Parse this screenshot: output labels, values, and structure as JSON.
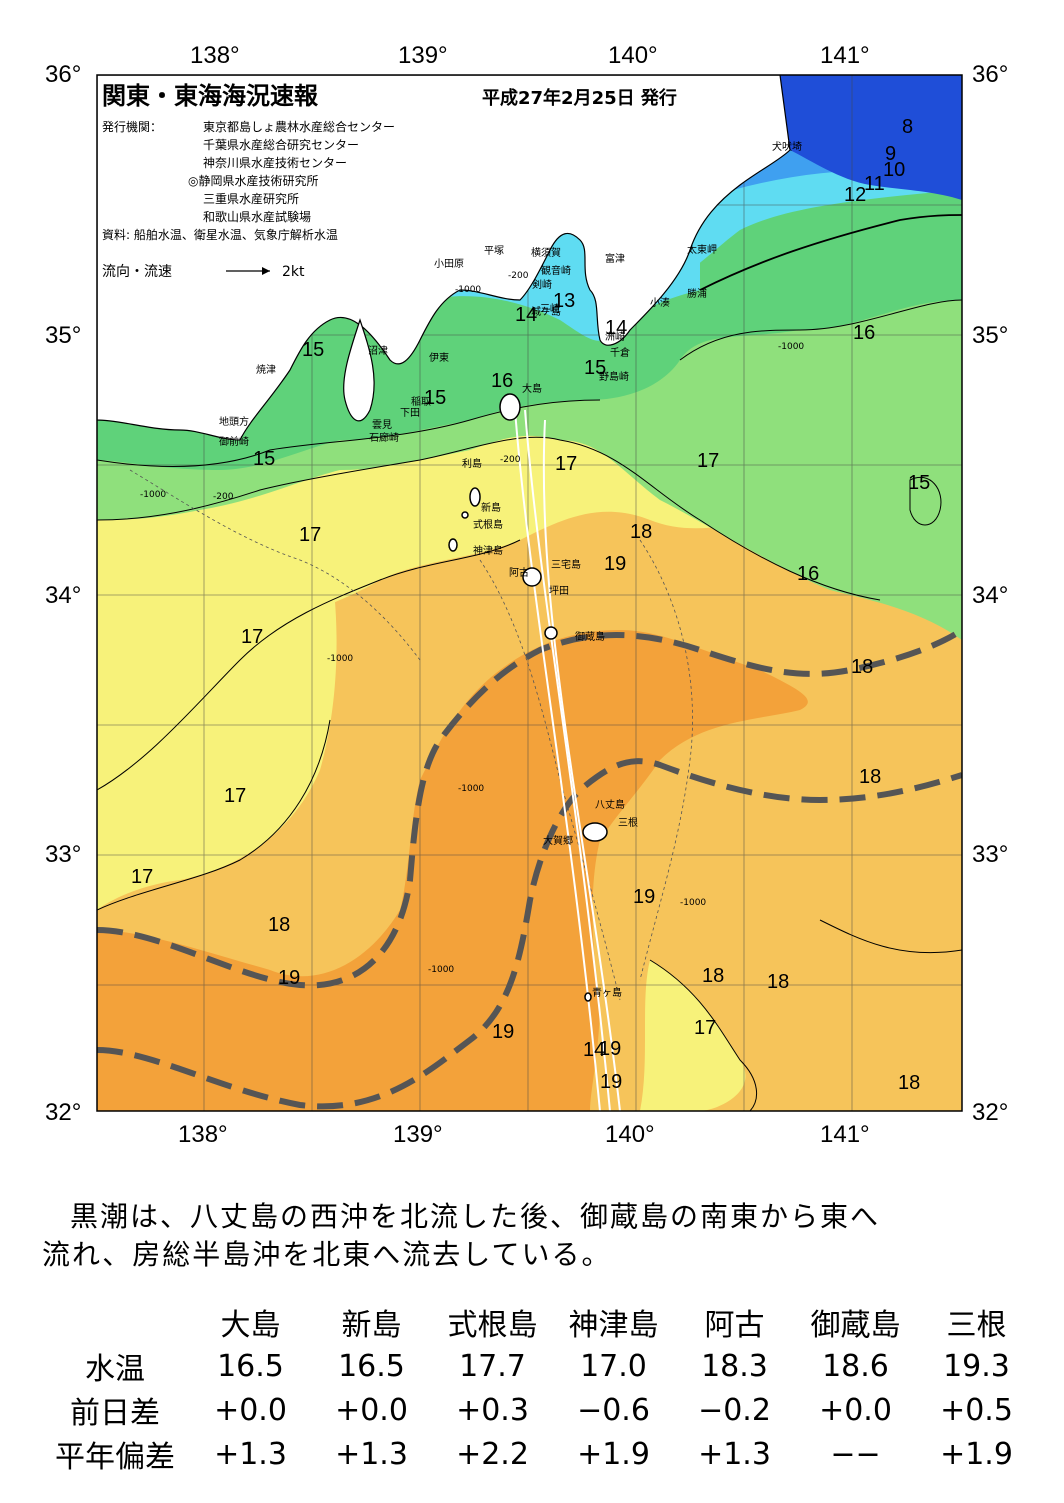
{
  "header": {
    "title": "関東・東海海況速報",
    "issue_date": "平成27年2月25日 発行",
    "publisher_label": "発行機関：",
    "publishers": [
      "東京都島しょ農林水産総合センター",
      "千葉県水産総合研究センター",
      "神奈川県水産技術センター",
      "◎静岡県水産技術研究所",
      "三重県水産研究所",
      "和歌山県水産試験場"
    ],
    "sources": "資料: 船舶水温、衛星水温、気象庁解析水温",
    "legend_label": "流向・流速",
    "legend_scale": "2kt"
  },
  "map": {
    "lon_labels": [
      "138°",
      "139°",
      "140°",
      "141°"
    ],
    "lat_labels": [
      "36°",
      "35°",
      "34°",
      "33°",
      "32°"
    ],
    "place_names": [
      "犬吠埼",
      "太東岬",
      "勝浦",
      "小湊",
      "富津",
      "観音崎",
      "剣崎",
      "城ケ島",
      "横須賀",
      "平塚",
      "小田原",
      "三崎",
      "洲崎",
      "千倉",
      "野島崎",
      "大島",
      "稲取",
      "下田",
      "沼津",
      "伊東",
      "雲見",
      "石廊崎",
      "焼津",
      "地頭方",
      "御前崎",
      "利島",
      "新島",
      "式根島",
      "神津島",
      "三宅島",
      "阿古",
      "坪田",
      "御蔵島",
      "八丈島",
      "三根",
      "大賀郷",
      "青ヶ島"
    ],
    "isotherm_labels": [
      "8",
      "9",
      "10",
      "11",
      "12",
      "13",
      "14",
      "14",
      "14",
      "15",
      "15",
      "15",
      "15",
      "15",
      "16",
      "16",
      "16",
      "17",
      "17",
      "17",
      "17",
      "17",
      "17",
      "17",
      "18",
      "18",
      "18",
      "18",
      "18",
      "18",
      "18",
      "19",
      "19",
      "19",
      "19",
      "19",
      "19"
    ],
    "depth_labels": [
      "-200",
      "-1000"
    ],
    "colors": {
      "sea_8_10": "#1f4ed8",
      "sea_11_12": "#3fa0f0",
      "sea_13_14": "#5fdcf2",
      "sea_15": "#5fd27a",
      "sea_16": "#8fe07c",
      "sea_17": "#f7f27a",
      "sea_18": "#f6c45a",
      "sea_19": "#f3a23a",
      "kuroshio_axis": "#555555",
      "land": "#ffffff"
    }
  },
  "summary": [
    "黒潮は、八丈島の西沖を北流した後、御蔵島の南東から東へ",
    "流れ、房総半島沖を北東へ流去している。"
  ],
  "stations": {
    "names": [
      "大島",
      "新島",
      "式根島",
      "神津島",
      "阿古",
      "御蔵島",
      "三根"
    ],
    "rows": [
      {
        "label": "水温",
        "values": [
          "16.5",
          "16.5",
          "17.7",
          "17.0",
          "18.3",
          "18.6",
          "19.3"
        ]
      },
      {
        "label": "前日差",
        "values": [
          "+0.0",
          "+0.0",
          "+0.3",
          "−0.6",
          "−0.2",
          "+0.0",
          "+0.5"
        ]
      },
      {
        "label": "平年偏差",
        "values": [
          "+1.3",
          "+1.3",
          "+2.2",
          "+1.9",
          "+1.3",
          "−−",
          "+1.9"
        ]
      }
    ]
  }
}
